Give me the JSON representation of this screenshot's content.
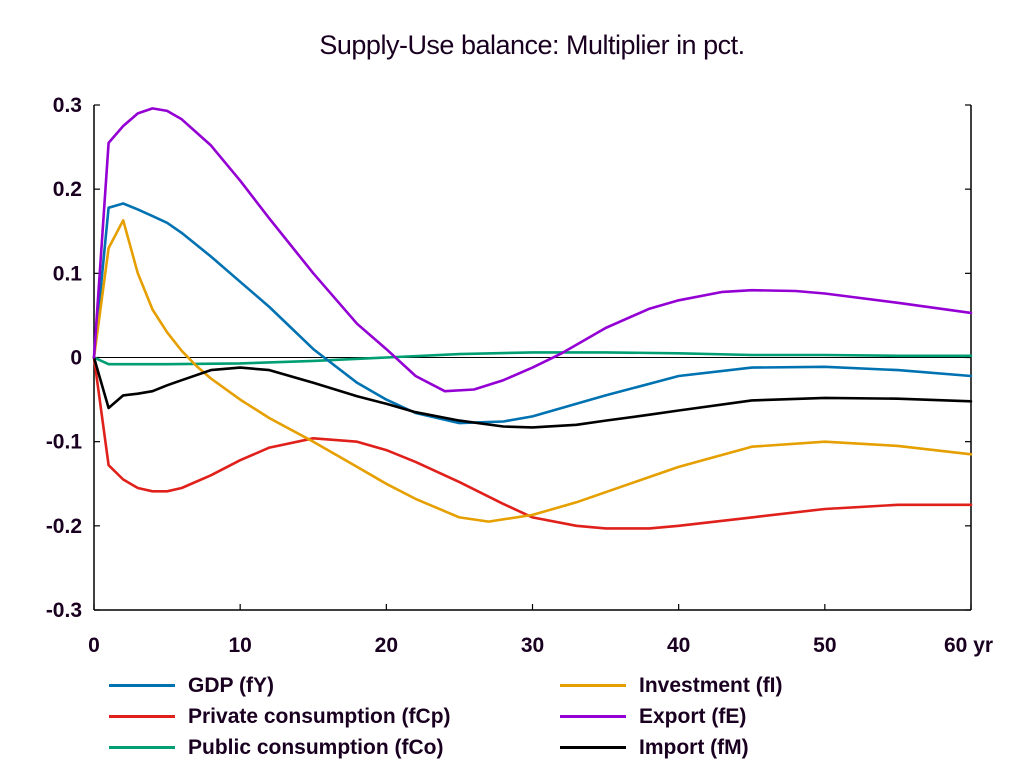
{
  "chart_data": {
    "type": "line",
    "title": "Supply-Use balance: Multiplier in pct.",
    "xlabel": "",
    "ylabel": "",
    "x_unit_label": "yr",
    "xlim": [
      0,
      60
    ],
    "ylim": [
      -0.3,
      0.3
    ],
    "x_ticks": [
      0,
      10,
      20,
      30,
      40,
      50,
      60
    ],
    "x_tick_labels": [
      "0",
      "10",
      "20",
      "30",
      "40",
      "50",
      "60 yr"
    ],
    "y_ticks": [
      0.3,
      0.2,
      0.1,
      0,
      -0.1,
      -0.2,
      -0.3
    ],
    "y_tick_labels": [
      "0.3",
      "0.2",
      "0.1",
      "0",
      "-0.1",
      "-0.2",
      "-0.3"
    ],
    "grid": false,
    "zero_line": true,
    "legend_position": "bottom",
    "series": [
      {
        "name": "GDP (fY)",
        "color": "#0072b2",
        "x": [
          0,
          1,
          2,
          3,
          4,
          5,
          6,
          8,
          10,
          12,
          15,
          18,
          20,
          22,
          25,
          28,
          30,
          35,
          40,
          45,
          50,
          55,
          60
        ],
        "values": [
          0,
          0.178,
          0.183,
          0.176,
          0.168,
          0.16,
          0.148,
          0.12,
          0.09,
          0.06,
          0.01,
          -0.03,
          -0.05,
          -0.066,
          -0.078,
          -0.076,
          -0.07,
          -0.045,
          -0.022,
          -0.012,
          -0.011,
          -0.015,
          -0.022
        ]
      },
      {
        "name": "Private consumption (fCp)",
        "color": "#e0201b",
        "x": [
          0,
          1,
          2,
          3,
          4,
          5,
          6,
          8,
          10,
          12,
          15,
          18,
          20,
          22,
          25,
          28,
          30,
          33,
          35,
          38,
          40,
          45,
          50,
          55,
          60
        ],
        "values": [
          0,
          -0.128,
          -0.145,
          -0.155,
          -0.159,
          -0.159,
          -0.155,
          -0.14,
          -0.122,
          -0.107,
          -0.096,
          -0.1,
          -0.11,
          -0.124,
          -0.148,
          -0.174,
          -0.19,
          -0.2,
          -0.203,
          -0.203,
          -0.2,
          -0.19,
          -0.18,
          -0.175,
          -0.175
        ]
      },
      {
        "name": "Public consumption (fCo)",
        "color": "#009e73",
        "x": [
          0,
          1,
          5,
          10,
          15,
          20,
          25,
          30,
          35,
          40,
          45,
          50,
          55,
          60
        ],
        "values": [
          0,
          -0.008,
          -0.008,
          -0.007,
          -0.004,
          0.0,
          0.004,
          0.006,
          0.006,
          0.005,
          0.003,
          0.003,
          0.002,
          0.002
        ]
      },
      {
        "name": "Investment (fI)",
        "color": "#e69f00",
        "x": [
          0,
          1,
          2,
          3,
          4,
          5,
          6,
          7,
          8,
          10,
          12,
          15,
          18,
          20,
          22,
          25,
          27,
          30,
          33,
          35,
          38,
          40,
          45,
          50,
          55,
          60
        ],
        "values": [
          0,
          0.13,
          0.163,
          0.1,
          0.057,
          0.03,
          0.008,
          -0.01,
          -0.025,
          -0.05,
          -0.072,
          -0.1,
          -0.13,
          -0.15,
          -0.168,
          -0.19,
          -0.195,
          -0.187,
          -0.172,
          -0.16,
          -0.142,
          -0.13,
          -0.106,
          -0.1,
          -0.105,
          -0.115
        ]
      },
      {
        "name": "Export (fE)",
        "color": "#9400d3",
        "x": [
          0,
          1,
          2,
          3,
          4,
          5,
          6,
          8,
          10,
          12,
          15,
          18,
          20,
          22,
          24,
          26,
          28,
          30,
          32,
          35,
          38,
          40,
          43,
          45,
          48,
          50,
          55,
          60
        ],
        "values": [
          0,
          0.255,
          0.275,
          0.29,
          0.296,
          0.293,
          0.283,
          0.252,
          0.21,
          0.165,
          0.1,
          0.04,
          0.01,
          -0.022,
          -0.04,
          -0.038,
          -0.027,
          -0.012,
          0.005,
          0.035,
          0.058,
          0.068,
          0.078,
          0.08,
          0.079,
          0.076,
          0.065,
          0.053
        ]
      },
      {
        "name": "Import (fM)",
        "color": "#000000",
        "x": [
          0,
          1,
          2,
          3,
          4,
          5,
          6,
          8,
          10,
          12,
          15,
          18,
          20,
          22,
          25,
          28,
          30,
          33,
          35,
          38,
          40,
          45,
          50,
          55,
          60
        ],
        "values": [
          0,
          -0.06,
          -0.045,
          -0.043,
          -0.04,
          -0.033,
          -0.027,
          -0.015,
          -0.012,
          -0.015,
          -0.03,
          -0.046,
          -0.055,
          -0.065,
          -0.075,
          -0.082,
          -0.083,
          -0.08,
          -0.075,
          -0.068,
          -0.063,
          -0.051,
          -0.048,
          -0.049,
          -0.052
        ]
      }
    ]
  },
  "legend": {
    "left": [
      {
        "label": "GDP (fY)",
        "color": "#0072b2"
      },
      {
        "label": "Private consumption (fCp)",
        "color": "#e0201b"
      },
      {
        "label": "Public consumption (fCo)",
        "color": "#009e73"
      }
    ],
    "right": [
      {
        "label": "Investment (fI)",
        "color": "#e69f00"
      },
      {
        "label": "Export (fE)",
        "color": "#9400d3"
      },
      {
        "label": "Import (fM)",
        "color": "#000000"
      }
    ]
  }
}
